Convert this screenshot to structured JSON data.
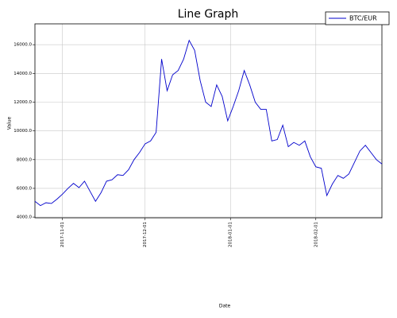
{
  "chart_data": {
    "type": "line",
    "title": "Line Graph",
    "xlabel": "Date",
    "ylabel": "Value",
    "x": [
      "2017-10-22",
      "2017-10-24",
      "2017-10-26",
      "2017-10-28",
      "2017-10-30",
      "2017-11-01",
      "2017-11-03",
      "2017-11-05",
      "2017-11-07",
      "2017-11-09",
      "2017-11-11",
      "2017-11-13",
      "2017-11-15",
      "2017-11-17",
      "2017-11-19",
      "2017-11-21",
      "2017-11-23",
      "2017-11-25",
      "2017-11-27",
      "2017-11-29",
      "2017-12-01",
      "2017-12-03",
      "2017-12-05",
      "2017-12-07",
      "2017-12-09",
      "2017-12-11",
      "2017-12-13",
      "2017-12-15",
      "2017-12-17",
      "2017-12-19",
      "2017-12-21",
      "2017-12-23",
      "2017-12-25",
      "2017-12-27",
      "2017-12-29",
      "2017-12-31",
      "2018-01-02",
      "2018-01-04",
      "2018-01-06",
      "2018-01-08",
      "2018-01-10",
      "2018-01-12",
      "2018-01-14",
      "2018-01-16",
      "2018-01-18",
      "2018-01-20",
      "2018-01-22",
      "2018-01-24",
      "2018-01-26",
      "2018-01-28",
      "2018-01-30",
      "2018-02-01",
      "2018-02-03",
      "2018-02-05",
      "2018-02-07",
      "2018-02-09",
      "2018-02-11",
      "2018-02-13",
      "2018-02-15",
      "2018-02-17",
      "2018-02-19",
      "2018-02-21",
      "2018-02-23",
      "2018-02-25"
    ],
    "series": [
      {
        "name": "BTC/EUR",
        "color": "#0000cc",
        "values": [
          5100,
          4800,
          5000,
          4950,
          5250,
          5600,
          6000,
          6350,
          6050,
          6500,
          5800,
          5100,
          5700,
          6500,
          6600,
          6950,
          6900,
          7300,
          8000,
          8500,
          9100,
          9300,
          9900,
          15000,
          12800,
          13900,
          14200,
          15000,
          16300,
          15600,
          13500,
          12000,
          11700,
          13200,
          12400,
          10700,
          11700,
          12800,
          14200,
          13200,
          12000,
          11500,
          11500,
          9300,
          9400,
          10400,
          8900,
          9200,
          9000,
          9300,
          8200,
          7500,
          7400,
          5500,
          6300,
          6900,
          6700,
          7000,
          7800,
          8600,
          9000,
          8500,
          8000,
          7700
        ]
      }
    ],
    "xlim": [
      "2017-10-22",
      "2018-02-25"
    ],
    "xticks": [
      "2017-11-01",
      "2017-12-01",
      "2018-01-01",
      "2018-02-01"
    ],
    "ylim": [
      3950,
      17450
    ],
    "yticks": [
      {
        "value": 4000,
        "label": "4000.0"
      },
      {
        "value": 6000,
        "label": "6000.0"
      },
      {
        "value": 8000,
        "label": "8000.0"
      },
      {
        "value": 10000,
        "label": "10000.0"
      },
      {
        "value": 12000,
        "label": "12000.0"
      },
      {
        "value": 14000,
        "label": "14000.0"
      },
      {
        "value": 16000,
        "label": "16000.0"
      }
    ],
    "grid": true,
    "legend": "upper right"
  }
}
